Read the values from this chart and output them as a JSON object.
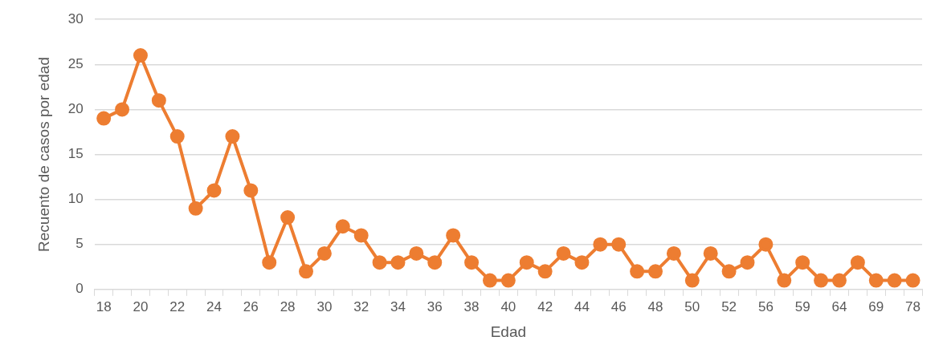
{
  "chart_data": {
    "type": "line",
    "xlabel": "Edad",
    "ylabel": "Recuento de casos por edad",
    "categories": [
      "18",
      null,
      "20",
      null,
      "22",
      null,
      "24",
      null,
      "26",
      null,
      "28",
      null,
      "30",
      null,
      "32",
      null,
      "34",
      null,
      "36",
      null,
      "38",
      null,
      "40",
      null,
      "42",
      null,
      "44",
      null,
      "46",
      null,
      "48",
      null,
      "50",
      null,
      "52",
      null,
      "56",
      null,
      "59",
      null,
      "64",
      null,
      "69",
      null,
      "78"
    ],
    "series": [
      {
        "color": "#ed7d31",
        "values": [
          19,
          20,
          26,
          21,
          17,
          9,
          11,
          17,
          11,
          3,
          8,
          2,
          4,
          7,
          6,
          3,
          3,
          4,
          3,
          6,
          3,
          1,
          1,
          3,
          2,
          4,
          3,
          5,
          5,
          2,
          2,
          4,
          1,
          4,
          2,
          3,
          5,
          1,
          3,
          1,
          1,
          3,
          1,
          1,
          1
        ]
      }
    ],
    "ylim": [
      0,
      30
    ],
    "yticks": [
      0,
      5,
      10,
      15,
      20,
      25,
      30
    ],
    "grid": "y",
    "legend": false,
    "marker": "circle",
    "line_style": "solid"
  }
}
